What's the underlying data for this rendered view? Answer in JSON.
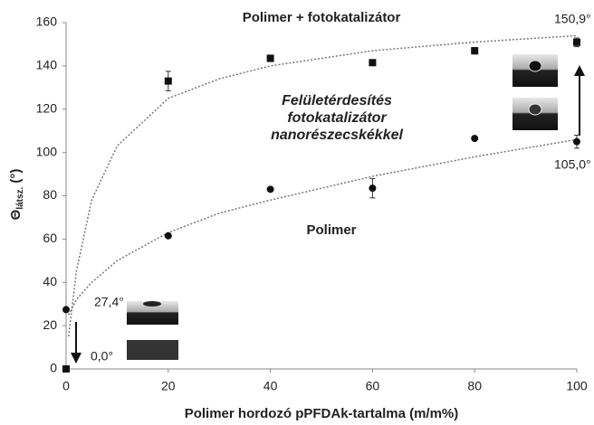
{
  "chart_data": {
    "type": "scatter",
    "x_label": "Polimer hordozó pPFDAk-tartalma (m/m%)",
    "y_label": "Θ",
    "y_label_sub": "látsz.",
    "y_label_unit": "(°)",
    "annotation": [
      "Felületérdesítés",
      "fotokatalizátor",
      "nanorészecskékkel"
    ],
    "x": [
      0,
      20,
      40,
      60,
      80,
      100
    ],
    "xlim": [
      0,
      100
    ],
    "xticks": [
      0,
      20,
      40,
      60,
      80,
      100
    ],
    "ylim": [
      0,
      160
    ],
    "yticks": [
      0,
      20,
      40,
      60,
      80,
      100,
      120,
      140,
      160
    ],
    "grid": false,
    "fit_x": [
      0.5,
      2,
      5,
      10,
      20,
      30,
      40,
      60,
      80,
      100
    ],
    "series": [
      {
        "name": "Polimer + fotokatalizátor",
        "marker": "square",
        "color": "#111111",
        "values": [
          0,
          133,
          143.5,
          141.5,
          147,
          150.9
        ],
        "errors": [
          null,
          4.5,
          1.5,
          null,
          1.5,
          2
        ],
        "value_labels": [
          "0,0°",
          null,
          null,
          null,
          null,
          "150,9°"
        ],
        "fit_values": [
          15,
          45,
          78,
          103,
          125,
          134,
          140,
          147,
          151,
          154
        ]
      },
      {
        "name": "Polimer",
        "marker": "circle",
        "color": "#111111",
        "values": [
          27.4,
          61.5,
          83,
          83.5,
          106.5,
          105
        ],
        "errors": [
          null,
          null,
          null,
          4.5,
          null,
          3
        ],
        "value_labels": [
          "27,4°",
          null,
          null,
          null,
          null,
          "105,0°"
        ],
        "fit_values": [
          25,
          32,
          40,
          50,
          63,
          72,
          78,
          89,
          98,
          106
        ]
      }
    ]
  }
}
